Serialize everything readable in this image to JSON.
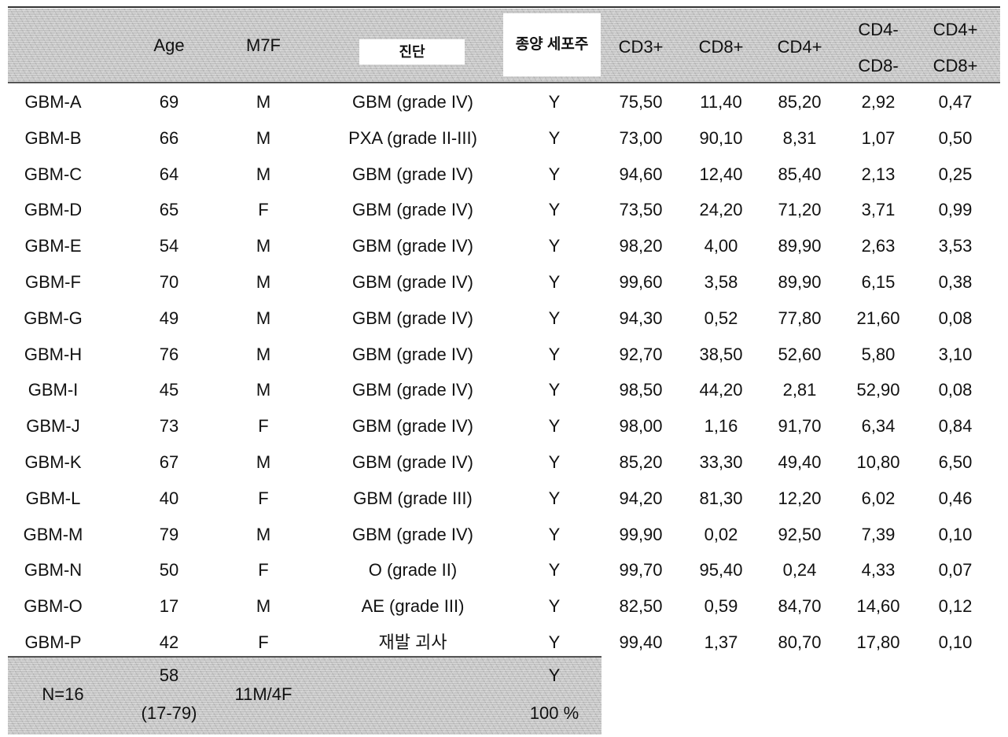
{
  "table": {
    "headers": {
      "id": "",
      "age": "Age",
      "sex": "M7F",
      "diagnosis": "진단",
      "tumor_cell_line": "종양 세포주",
      "cd3": "CD3+",
      "cd8": "CD8+",
      "cd4": "CD4+",
      "cd4neg_cd8neg_l1": "CD4-",
      "cd4neg_cd8neg_l2": "CD8-",
      "cd4pos_cd8pos_l1": "CD4+",
      "cd4pos_cd8pos_l2": "CD8+"
    },
    "rows": [
      {
        "id": "GBM-A",
        "age": "69",
        "sex": "M",
        "diagnosis": "GBM (grade IV)",
        "cell_line": "Y",
        "cd3": "75,50",
        "cd8": "11,40",
        "cd4": "85,20",
        "dn": "2,92",
        "dp": "0,47"
      },
      {
        "id": "GBM-B",
        "age": "66",
        "sex": "M",
        "diagnosis": "PXA (grade II-III)",
        "cell_line": "Y",
        "cd3": "73,00",
        "cd8": "90,10",
        "cd4": "8,31",
        "dn": "1,07",
        "dp": "0,50"
      },
      {
        "id": "GBM-C",
        "age": "64",
        "sex": "M",
        "diagnosis": "GBM (grade IV)",
        "cell_line": "Y",
        "cd3": "94,60",
        "cd8": "12,40",
        "cd4": "85,40",
        "dn": "2,13",
        "dp": "0,25"
      },
      {
        "id": "GBM-D",
        "age": "65",
        "sex": "F",
        "diagnosis": "GBM (grade IV)",
        "cell_line": "Y",
        "cd3": "73,50",
        "cd8": "24,20",
        "cd4": "71,20",
        "dn": "3,71",
        "dp": "0,99"
      },
      {
        "id": "GBM-E",
        "age": "54",
        "sex": "M",
        "diagnosis": "GBM (grade IV)",
        "cell_line": "Y",
        "cd3": "98,20",
        "cd8": "4,00",
        "cd4": "89,90",
        "dn": "2,63",
        "dp": "3,53"
      },
      {
        "id": "GBM-F",
        "age": "70",
        "sex": "M",
        "diagnosis": "GBM (grade IV)",
        "cell_line": "Y",
        "cd3": "99,60",
        "cd8": "3,58",
        "cd4": "89,90",
        "dn": "6,15",
        "dp": "0,38"
      },
      {
        "id": "GBM-G",
        "age": "49",
        "sex": "M",
        "diagnosis": "GBM (grade IV)",
        "cell_line": "Y",
        "cd3": "94,30",
        "cd8": "0,52",
        "cd4": "77,80",
        "dn": "21,60",
        "dp": "0,08"
      },
      {
        "id": "GBM-H",
        "age": "76",
        "sex": "M",
        "diagnosis": "GBM (grade IV)",
        "cell_line": "Y",
        "cd3": "92,70",
        "cd8": "38,50",
        "cd4": "52,60",
        "dn": "5,80",
        "dp": "3,10"
      },
      {
        "id": "GBM-I",
        "age": "45",
        "sex": "M",
        "diagnosis": "GBM (grade IV)",
        "cell_line": "Y",
        "cd3": "98,50",
        "cd8": "44,20",
        "cd4": "2,81",
        "dn": "52,90",
        "dp": "0,08"
      },
      {
        "id": "GBM-J",
        "age": "73",
        "sex": "F",
        "diagnosis": "GBM (grade IV)",
        "cell_line": "Y",
        "cd3": "98,00",
        "cd8": "1,16",
        "cd4": "91,70",
        "dn": "6,34",
        "dp": "0,84"
      },
      {
        "id": "GBM-K",
        "age": "67",
        "sex": "M",
        "diagnosis": "GBM (grade IV)",
        "cell_line": "Y",
        "cd3": "85,20",
        "cd8": "33,30",
        "cd4": "49,40",
        "dn": "10,80",
        "dp": "6,50"
      },
      {
        "id": "GBM-L",
        "age": "40",
        "sex": "F",
        "diagnosis": "GBM (grade III)",
        "cell_line": "Y",
        "cd3": "94,20",
        "cd8": "81,30",
        "cd4": "12,20",
        "dn": "6,02",
        "dp": "0,46"
      },
      {
        "id": "GBM-M",
        "age": "79",
        "sex": "M",
        "diagnosis": "GBM (grade IV)",
        "cell_line": "Y",
        "cd3": "99,90",
        "cd8": "0,02",
        "cd4": "92,50",
        "dn": "7,39",
        "dp": "0,10"
      },
      {
        "id": "GBM-N",
        "age": "50",
        "sex": "F",
        "diagnosis": "O (grade II)",
        "cell_line": "Y",
        "cd3": "99,70",
        "cd8": "95,40",
        "cd4": "0,24",
        "dn": "4,33",
        "dp": "0,07"
      },
      {
        "id": "GBM-O",
        "age": "17",
        "sex": "M",
        "diagnosis": "AE (grade III)",
        "cell_line": "Y",
        "cd3": "82,50",
        "cd8": "0,59",
        "cd4": "84,70",
        "dn": "14,60",
        "dp": "0,12"
      },
      {
        "id": "GBM-P",
        "age": "42",
        "sex": "F",
        "diagnosis": "재발 괴사",
        "cell_line": "Y",
        "cd3": "99,40",
        "cd8": "1,37",
        "cd4": "80,70",
        "dn": "17,80",
        "dp": "0,10"
      }
    ],
    "summary": {
      "n": "N=16",
      "age_median": "58",
      "age_range": "(17-79)",
      "sex_ratio": "11M/4F",
      "cell_line_y": "Y",
      "cell_line_pct": "100 %"
    }
  }
}
